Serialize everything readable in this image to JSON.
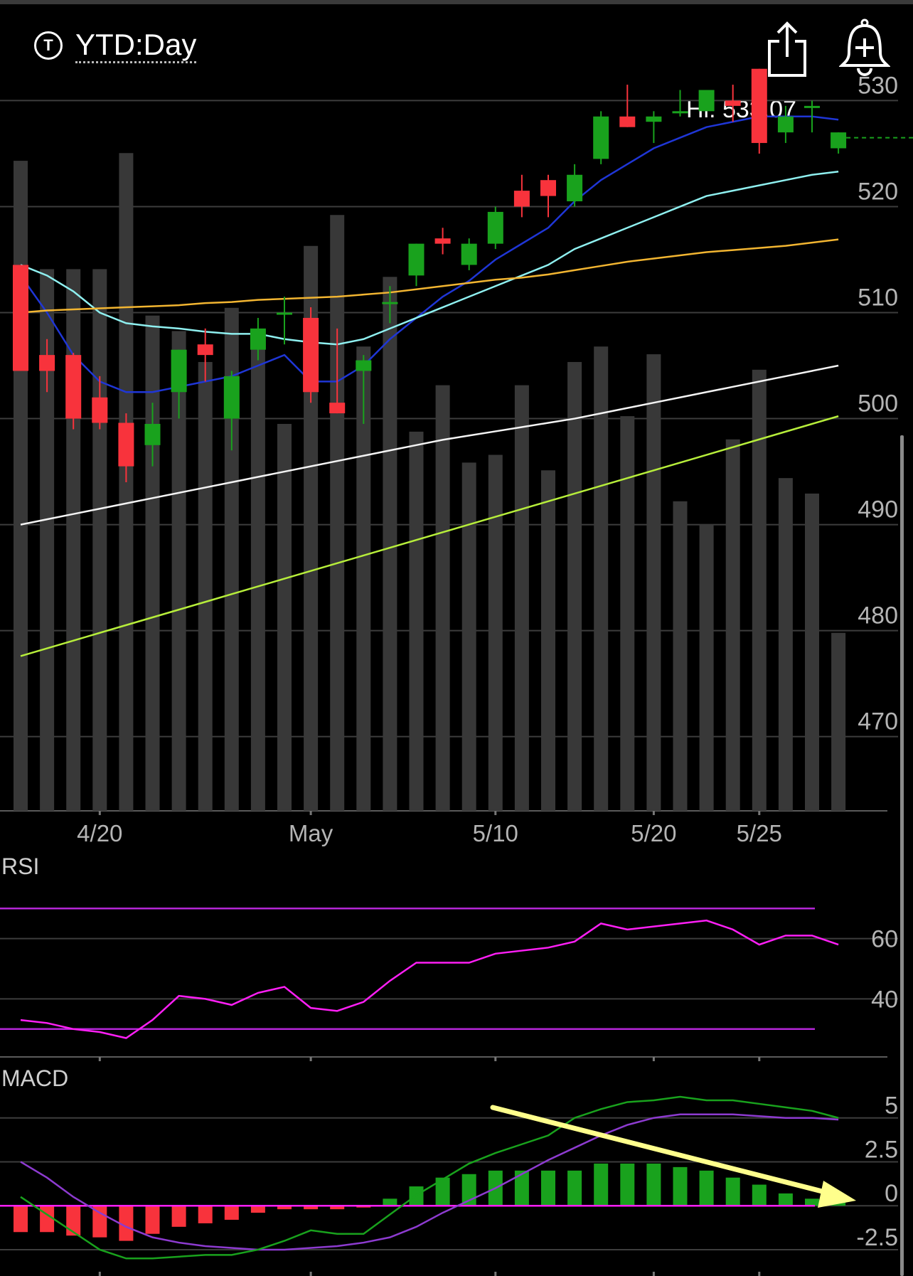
{
  "header": {
    "badge": "T",
    "period": "YTD:Day",
    "share_icon": "share-icon",
    "alert_icon": "bell-plus-icon"
  },
  "colors": {
    "up": "#19a21d",
    "down": "#f8333c",
    "volume": "#383838",
    "ma_blue": "#1f36d6",
    "ma_cyan": "#8ff0f0",
    "ma_orange": "#f2b531",
    "ma_white": "#f4f4f4",
    "volume_ma": "#b7ee3b",
    "rsi_line": "#ff1ff6",
    "rsi_bands": "#b326d6",
    "macd_line": "#19a21d",
    "signal_line": "#8d3bd0",
    "annotation_arrow": "#ffff8c"
  },
  "chart_data": [
    {
      "type": "candlestick",
      "hi_label": "Hi: 533.07",
      "y_ticks": [
        470,
        480,
        490,
        500,
        510,
        520,
        530
      ],
      "ylim": [
        463,
        536
      ],
      "x_tick_labels": [
        {
          "label": "4/20",
          "index": 3
        },
        {
          "label": "May",
          "index": 11
        },
        {
          "label": "5/10",
          "index": 18
        },
        {
          "label": "5/20",
          "index": 24
        },
        {
          "label": "5/25",
          "index": 28
        }
      ],
      "candles": [
        {
          "o": 514.5,
          "h": 514.5,
          "l": 504.5,
          "c": 504.5
        },
        {
          "o": 506,
          "h": 507.5,
          "l": 502.5,
          "c": 504.5
        },
        {
          "o": 506,
          "h": 506.2,
          "l": 499,
          "c": 500
        },
        {
          "o": 502,
          "h": 504,
          "l": 499,
          "c": 499.6
        },
        {
          "o": 499.6,
          "h": 500.5,
          "l": 494,
          "c": 495.5
        },
        {
          "o": 497.5,
          "h": 501.5,
          "l": 495.5,
          "c": 499.5
        },
        {
          "o": 502.5,
          "h": 506.5,
          "l": 500,
          "c": 506.5
        },
        {
          "o": 507,
          "h": 508.5,
          "l": 503.5,
          "c": 506
        },
        {
          "o": 500,
          "h": 504.5,
          "l": 497,
          "c": 504
        },
        {
          "o": 506.5,
          "h": 509.5,
          "l": 505.5,
          "c": 508.5
        },
        {
          "o": 510,
          "h": 511.5,
          "l": 507,
          "c": 510
        },
        {
          "o": 509.5,
          "h": 510.5,
          "l": 501.5,
          "c": 502.5
        },
        {
          "o": 501.5,
          "h": 508.5,
          "l": 500.5,
          "c": 500.5
        },
        {
          "o": 504.5,
          "h": 506,
          "l": 499.5,
          "c": 505.5
        },
        {
          "o": 511,
          "h": 512.5,
          "l": 509,
          "c": 511
        },
        {
          "o": 513.5,
          "h": 516.5,
          "l": 512.5,
          "c": 516.5
        },
        {
          "o": 517,
          "h": 518,
          "l": 515.5,
          "c": 516.5
        },
        {
          "o": 514.5,
          "h": 517,
          "l": 514,
          "c": 516.5
        },
        {
          "o": 516.5,
          "h": 520,
          "l": 516,
          "c": 519.5
        },
        {
          "o": 521.5,
          "h": 523,
          "l": 519,
          "c": 520
        },
        {
          "o": 522.5,
          "h": 523,
          "l": 519,
          "c": 521
        },
        {
          "o": 520.5,
          "h": 524,
          "l": 520,
          "c": 523
        },
        {
          "o": 524.5,
          "h": 529,
          "l": 524,
          "c": 528.5
        },
        {
          "o": 528.5,
          "h": 531.5,
          "l": 527.5,
          "c": 527.5
        },
        {
          "o": 528,
          "h": 529,
          "l": 526,
          "c": 528.5
        },
        {
          "o": 529,
          "h": 531,
          "l": 528.5,
          "c": 529
        },
        {
          "o": 529,
          "h": 531,
          "l": 529,
          "c": 531
        },
        {
          "o": 530,
          "h": 531.5,
          "l": 528,
          "c": 529.5
        },
        {
          "o": 533,
          "h": 533,
          "l": 525,
          "c": 526
        },
        {
          "o": 527,
          "h": 529.5,
          "l": 526,
          "c": 528.5
        },
        {
          "o": 529.5,
          "h": 530,
          "l": 527,
          "c": 529.5
        },
        {
          "o": 525.5,
          "h": 527,
          "l": 525,
          "c": 527
        }
      ],
      "last_price": 526.5,
      "volume_bars": [
        0.84,
        0.7,
        0.7,
        0.7,
        0.85,
        0.64,
        0.62,
        0.58,
        0.65,
        0.61,
        0.5,
        0.73,
        0.77,
        0.6,
        0.69,
        0.49,
        0.55,
        0.45,
        0.46,
        0.55,
        0.44,
        0.58,
        0.6,
        0.51,
        0.59,
        0.4,
        0.37,
        0.48,
        0.57,
        0.43,
        0.41,
        0.23
      ],
      "moving_averages": [
        {
          "color_key": "ma_blue",
          "values": [
            513.5,
            510,
            506,
            503.5,
            502.5,
            502.5,
            503,
            503.5,
            504,
            505,
            506,
            503.5,
            503.5,
            505,
            507.5,
            509.5,
            511.5,
            513,
            515,
            516.5,
            518,
            520.5,
            522.5,
            524,
            525.5,
            526.5,
            527.5,
            528,
            528.5,
            528.5,
            528.5,
            528.2
          ]
        },
        {
          "color_key": "ma_cyan",
          "values": [
            514.5,
            513.5,
            512,
            510,
            509,
            508.7,
            508.5,
            508.2,
            508,
            508,
            507.5,
            507.2,
            507,
            507.5,
            508.5,
            509.5,
            510.5,
            511.5,
            512.5,
            513.5,
            514.5,
            516,
            517,
            518,
            519,
            520,
            521,
            521.5,
            522,
            522.5,
            523,
            523.3
          ]
        },
        {
          "color_key": "ma_orange",
          "values": [
            510,
            510.2,
            510.3,
            510.4,
            510.5,
            510.6,
            510.7,
            510.9,
            511,
            511.2,
            511.3,
            511.4,
            511.5,
            511.7,
            511.9,
            512.2,
            512.5,
            512.8,
            513.1,
            513.3,
            513.6,
            514,
            514.4,
            514.8,
            515.1,
            515.4,
            515.7,
            515.9,
            516.1,
            516.3,
            516.6,
            516.9
          ]
        },
        {
          "color_key": "ma_white",
          "values": [
            490,
            490.5,
            491,
            491.5,
            492,
            492.5,
            493,
            493.5,
            494,
            494.5,
            495,
            495.5,
            496,
            496.5,
            497,
            497.5,
            498,
            498.4,
            498.8,
            499.2,
            499.6,
            500,
            500.5,
            501,
            501.5,
            502,
            502.5,
            503,
            503.5,
            504,
            504.5,
            505
          ]
        }
      ],
      "volume_ma": [
        0.2,
        0.21,
        0.22,
        0.23,
        0.24,
        0.25,
        0.26,
        0.27,
        0.28,
        0.29,
        0.3,
        0.31,
        0.32,
        0.33,
        0.34,
        0.35,
        0.36,
        0.37,
        0.38,
        0.39,
        0.4,
        0.41,
        0.42,
        0.43,
        0.44,
        0.45,
        0.46,
        0.47,
        0.48,
        0.49,
        0.5,
        0.51
      ]
    },
    {
      "type": "line",
      "title": "RSI",
      "y_ticks": [
        40,
        60
      ],
      "ylim": [
        25,
        75
      ],
      "bands": [
        30,
        70
      ],
      "values": [
        33,
        32,
        30,
        29,
        27,
        33,
        41,
        40,
        38,
        42,
        44,
        37,
        36,
        39,
        46,
        52,
        52,
        52,
        55,
        56,
        57,
        59,
        65,
        63,
        64,
        65,
        66,
        63,
        58,
        61,
        61,
        58
      ]
    },
    {
      "type": "line",
      "title": "MACD",
      "y_ticks": [
        "5",
        "2.5",
        "0",
        "-2.5"
      ],
      "ylim": [
        -4,
        6
      ],
      "macd": [
        0.5,
        -0.5,
        -1.5,
        -2.5,
        -3.0,
        -3.0,
        -2.9,
        -2.8,
        -2.8,
        -2.5,
        -2.0,
        -1.4,
        -1.6,
        -1.6,
        -0.5,
        0.6,
        1.5,
        2.4,
        3.0,
        3.5,
        4.0,
        5.0,
        5.5,
        5.9,
        6.0,
        6.2,
        6.0,
        6.0,
        5.8,
        5.6,
        5.4,
        5.0
      ],
      "signal": [
        2.5,
        1.6,
        0.5,
        -0.4,
        -1.2,
        -1.8,
        -2.1,
        -2.3,
        -2.4,
        -2.5,
        -2.5,
        -2.4,
        -2.3,
        -2.1,
        -1.8,
        -1.2,
        -0.4,
        0.3,
        1.0,
        1.8,
        2.6,
        3.3,
        4.0,
        4.6,
        5.0,
        5.2,
        5.2,
        5.2,
        5.1,
        5.0,
        5.0,
        4.9
      ],
      "histogram": [
        -1.5,
        -1.5,
        -1.7,
        -1.8,
        -2.0,
        -1.6,
        -1.2,
        -1.0,
        -0.8,
        -0.4,
        -0.2,
        -0.2,
        -0.2,
        -0.1,
        0.4,
        1.1,
        1.6,
        1.8,
        2.0,
        2.0,
        2.0,
        2.0,
        2.4,
        2.4,
        2.4,
        2.2,
        2.0,
        1.6,
        1.2,
        0.7,
        0.4,
        0.2
      ]
    }
  ]
}
